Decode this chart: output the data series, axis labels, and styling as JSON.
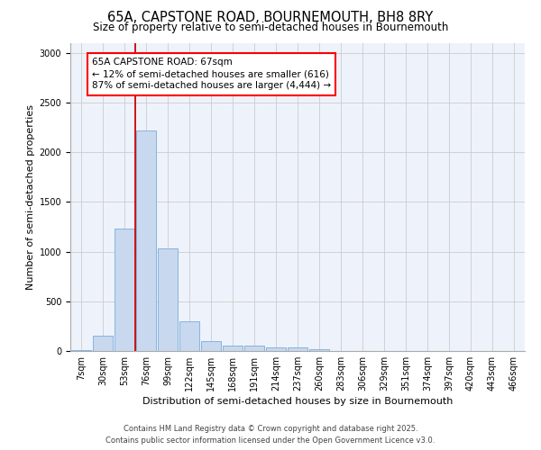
{
  "title_line1": "65A, CAPSTONE ROAD, BOURNEMOUTH, BH8 8RY",
  "title_line2": "Size of property relative to semi-detached houses in Bournemouth",
  "xlabel": "Distribution of semi-detached houses by size in Bournemouth",
  "ylabel": "Number of semi-detached properties",
  "bar_labels": [
    "7sqm",
    "30sqm",
    "53sqm",
    "76sqm",
    "99sqm",
    "122sqm",
    "145sqm",
    "168sqm",
    "191sqm",
    "214sqm",
    "237sqm",
    "260sqm",
    "283sqm",
    "306sqm",
    "329sqm",
    "351sqm",
    "374sqm",
    "397sqm",
    "420sqm",
    "443sqm",
    "466sqm"
  ],
  "bar_values": [
    5,
    150,
    1230,
    2220,
    1030,
    295,
    100,
    58,
    58,
    35,
    35,
    20,
    0,
    0,
    0,
    0,
    0,
    0,
    0,
    0,
    0
  ],
  "bar_color": "#c8d8ee",
  "bar_edge_color": "#7aacda",
  "plot_bg_color": "#eef2fb",
  "grid_color": "#cccccc",
  "vline_color": "#cc0000",
  "vline_x_index": 2.5,
  "annotation_text_line1": "65A CAPSTONE ROAD: 67sqm",
  "annotation_text_line2": "← 12% of semi-detached houses are smaller (616)",
  "annotation_text_line3": "87% of semi-detached houses are larger (4,444) →",
  "ylim": [
    0,
    3100
  ],
  "yticks": [
    0,
    500,
    1000,
    1500,
    2000,
    2500,
    3000
  ],
  "footer_line1": "Contains HM Land Registry data © Crown copyright and database right 2025.",
  "footer_line2": "Contains public sector information licensed under the Open Government Licence v3.0.",
  "title_fontsize": 10.5,
  "subtitle_fontsize": 8.5,
  "axis_label_fontsize": 8,
  "tick_fontsize": 7,
  "annotation_fontsize": 7.5,
  "footer_fontsize": 6
}
